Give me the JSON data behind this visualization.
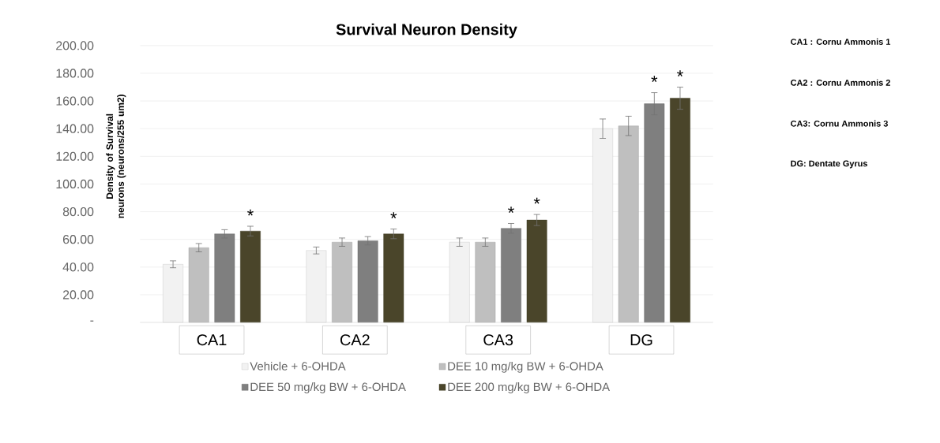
{
  "chart_data": {
    "type": "bar",
    "title": "Survival Neuron Density",
    "ylabel": "Density of Survival neurons (neurons/255 um2)",
    "categories": [
      "CA1",
      "CA2",
      "CA3",
      "DG"
    ],
    "series": [
      {
        "name": "Vehicle + 6-OHDA",
        "color": "#f2f2f2",
        "values": [
          42,
          52,
          58,
          140
        ],
        "errors": [
          2.5,
          2.5,
          3,
          7
        ]
      },
      {
        "name": "DEE 10 mg/kg BW + 6-OHDA",
        "color": "#bfbfbf",
        "values": [
          54,
          58,
          58,
          142
        ],
        "errors": [
          3,
          3,
          3,
          7
        ]
      },
      {
        "name": "DEE 50 mg/kg BW + 6-OHDA",
        "color": "#7f7f7f",
        "values": [
          64,
          59,
          68,
          158
        ],
        "errors": [
          3,
          3,
          3.5,
          8
        ],
        "value_labels": [
          null,
          null,
          "*",
          "*"
        ]
      },
      {
        "name": "DEE 200 mg/kg BW + 6-OHDA",
        "color": "#4a452a",
        "values": [
          66,
          64,
          74,
          162
        ],
        "errors": [
          3.5,
          3.5,
          4,
          8
        ],
        "value_labels": [
          "*",
          "*",
          "*",
          "*"
        ]
      }
    ],
    "ylim": [
      0,
      200
    ],
    "yticks": [
      {
        "value": 0,
        "label": "-"
      },
      {
        "value": 20,
        "label": "20.00"
      },
      {
        "value": 40,
        "label": "40.00"
      },
      {
        "value": 60,
        "label": "60.00"
      },
      {
        "value": 80,
        "label": "80.00"
      },
      {
        "value": 100,
        "label": "100.00"
      },
      {
        "value": 120,
        "label": "120.00"
      },
      {
        "value": 140,
        "label": "140.00"
      },
      {
        "value": 160,
        "label": "160.00"
      },
      {
        "value": 180,
        "label": "180.00"
      },
      {
        "value": 200,
        "label": "200.00"
      }
    ],
    "grid": "y",
    "legend": "bottom",
    "annotations": [
      "CA1 : Cornu Ammonis 1",
      "CA2 : Cornu Ammonis 2",
      "CA3: Cornu Ammonis 3",
      "DG: Dentate Gyrus"
    ]
  }
}
